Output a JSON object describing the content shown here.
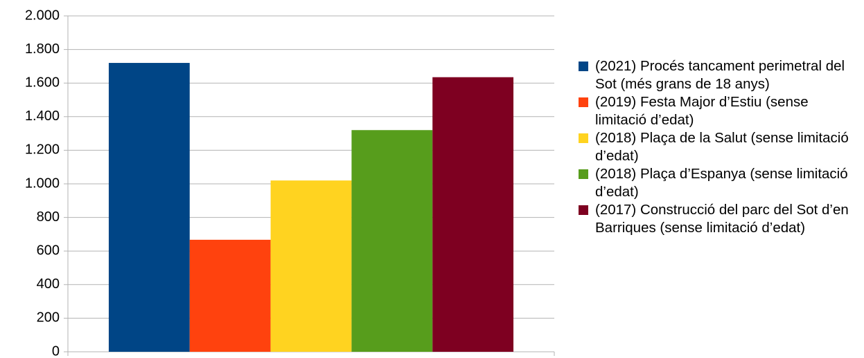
{
  "chart_data": {
    "type": "bar",
    "categories": [
      null
    ],
    "series": [
      {
        "name": "(2021) Procés tancament perimetral del Sot (més grans de 18 anys)",
        "color": "#004586",
        "values": [
          1720
        ]
      },
      {
        "name": "(2019) Festa Major d’Estiu (sense limitació d’edat)",
        "color": "#ff420e",
        "values": [
          667
        ]
      },
      {
        "name": "(2018) Plaça de la Salut (sense limitació d’edat)",
        "color": "#ffd320",
        "values": [
          1020
        ]
      },
      {
        "name": "(2018) Plaça d’Espanya (sense limitació d’edat)",
        "color": "#579d1c",
        "values": [
          1320
        ]
      },
      {
        "name": "(2017) Construcció del parc del Sot d’en Barriques (sense limitació d’edat)",
        "color": "#7e0021",
        "values": [
          1635
        ]
      }
    ],
    "ylim": [
      0,
      2000
    ],
    "yticks": [
      0,
      200,
      400,
      600,
      800,
      {
        "value": 1000,
        "label": "1.000"
      },
      {
        "value": 1200,
        "label": "1.200"
      },
      {
        "value": 1400,
        "label": "1.400"
      },
      {
        "value": 1600,
        "label": "1.600"
      },
      {
        "value": 1800,
        "label": "1.800"
      },
      {
        "value": 2000,
        "label": "2.000"
      }
    ],
    "grid": true,
    "legend": "right"
  }
}
